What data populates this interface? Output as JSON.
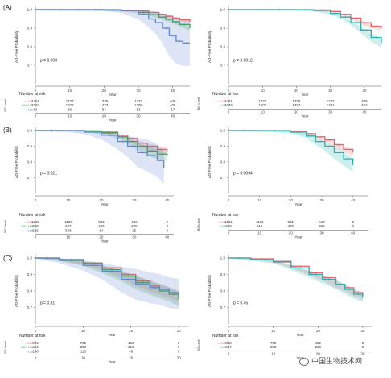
{
  "panel_letters": [
    "(A)",
    "(B)",
    "(C)"
  ],
  "watermark": "中国生物技术网",
  "colors": {
    "red": "#e8636b",
    "green": "#3aa24a",
    "blue": "#5f86d6",
    "teal": "#26b2b2"
  },
  "chart_data": [
    {
      "type": "line",
      "id": "A-left",
      "letter": "(A)",
      "xlabel": "Year",
      "ylabel": "AD-Free Probability",
      "pvalue": "p = 0.003",
      "xlim": [
        0,
        45
      ],
      "ylim": [
        0.6,
        1.0
      ],
      "xticks": [
        0,
        10,
        20,
        30,
        40
      ],
      "yticks": [
        0.7,
        0.8,
        0.9,
        1.0
      ],
      "series": [
        {
          "color": "red",
          "x": [
            0,
            5,
            10,
            15,
            20,
            25,
            30,
            33,
            36,
            38,
            40,
            42,
            45
          ],
          "y": [
            1,
            1,
            1,
            1,
            0.999,
            0.997,
            0.993,
            0.985,
            0.975,
            0.965,
            0.955,
            0.945,
            0.935
          ],
          "band": 0.012
        },
        {
          "color": "green",
          "x": [
            0,
            5,
            10,
            15,
            20,
            25,
            30,
            33,
            36,
            38,
            40,
            42,
            45
          ],
          "y": [
            1,
            1,
            1,
            1,
            0.998,
            0.994,
            0.985,
            0.973,
            0.96,
            0.948,
            0.935,
            0.92,
            0.9
          ],
          "band": 0.014
        },
        {
          "color": "blue",
          "x": [
            0,
            10,
            20,
            25,
            30,
            33,
            35,
            37,
            39,
            41,
            43,
            45
          ],
          "y": [
            1,
            1,
            1,
            0.995,
            0.975,
            0.95,
            0.93,
            0.9,
            0.86,
            0.83,
            0.82,
            0.82
          ],
          "band": 0.12
        }
      ],
      "risk": {
        "title": "Number at risk",
        "ylabel": "BG Level",
        "xticks": [
          0,
          10,
          20,
          30,
          40
        ],
        "strata": [
          {
            "label": "<=100",
            "color": "red",
            "values": [
              "1461",
              "1427",
              "1336",
              "1223",
              "408"
            ]
          },
          {
            "label": "100~126",
            "color": "green",
            "values": [
              "1062",
              "1027",
              "1423",
              "1208",
              "405"
            ]
          },
          {
            "label": ">126",
            "color": "blue",
            "values": [
              "84",
              "80",
              "84",
              "63",
              "17"
            ]
          }
        ]
      }
    },
    {
      "type": "line",
      "id": "A-right",
      "letter": "",
      "xlabel": "Year",
      "ylabel": "AD-Free Probability",
      "pvalue": "p = 0.0012",
      "xlim": [
        0,
        45
      ],
      "ylim": [
        0.6,
        1.0
      ],
      "xticks": [
        0,
        10,
        20,
        30,
        40
      ],
      "yticks": [
        0.7,
        0.8,
        0.9,
        1.0
      ],
      "series": [
        {
          "color": "red",
          "x": [
            0,
            10,
            20,
            25,
            30,
            33,
            36,
            39,
            42,
            45
          ],
          "y": [
            1,
            1,
            1,
            0.998,
            0.99,
            0.975,
            0.955,
            0.93,
            0.91,
            0.9
          ],
          "band": 0.015
        },
        {
          "color": "teal",
          "x": [
            0,
            10,
            20,
            25,
            30,
            33,
            36,
            39,
            42,
            45
          ],
          "y": [
            1,
            1,
            0.999,
            0.995,
            0.98,
            0.96,
            0.93,
            0.89,
            0.85,
            0.82
          ],
          "band": 0.02
        }
      ],
      "risk": {
        "title": "Number at risk",
        "ylabel": "BG Level",
        "xticks": [
          0,
          10,
          20,
          30,
          40
        ],
        "strata": [
          {
            "label": "<=100",
            "color": "red",
            "values": [
              "1461",
              "1427",
              "1338",
              "1222",
              "409"
            ]
          },
          {
            "label": ">100",
            "color": "teal",
            "values": [
              "1646",
              "1607",
              "1487",
              "1281",
              "422"
            ]
          }
        ]
      }
    },
    {
      "type": "line",
      "id": "B-left",
      "letter": "(B)",
      "xlabel": "Year",
      "ylabel": "AD-Free Probability",
      "pvalue": "p = 0.021",
      "xlim": [
        0,
        42
      ],
      "ylim": [
        0.6,
        1.0
      ],
      "xticks": [
        0,
        10,
        20,
        30,
        40
      ],
      "yticks": [
        0.7,
        0.8,
        0.9,
        1.0
      ],
      "series": [
        {
          "color": "red",
          "x": [
            0,
            10,
            15,
            20,
            25,
            28,
            31,
            34,
            37,
            40
          ],
          "y": [
            1,
            1,
            0.998,
            0.99,
            0.97,
            0.95,
            0.92,
            0.9,
            0.88,
            0.87
          ],
          "band": 0.025
        },
        {
          "color": "green",
          "x": [
            0,
            10,
            15,
            20,
            25,
            28,
            31,
            34,
            37,
            40
          ],
          "y": [
            1,
            1,
            0.997,
            0.985,
            0.96,
            0.93,
            0.9,
            0.87,
            0.85,
            0.84
          ],
          "band": 0.03
        },
        {
          "color": "blue",
          "x": [
            0,
            10,
            15,
            20,
            25,
            28,
            31,
            34,
            37,
            39
          ],
          "y": [
            1,
            0.998,
            0.99,
            0.97,
            0.93,
            0.9,
            0.86,
            0.84,
            0.81,
            0.76
          ],
          "band": 0.1
        }
      ],
      "risk": {
        "title": "Number at risk",
        "ylabel": "BG Level",
        "xticks": [
          0,
          10,
          20,
          30,
          40
        ],
        "strata": [
          {
            "label": "<=100",
            "color": "red",
            "values": [
              "1203",
              "1136",
              "881",
              "449",
              "0"
            ]
          },
          {
            "label": "100~126",
            "color": "green",
            "values": [
              "543",
              "507",
              "409",
              "209",
              "0"
            ]
          },
          {
            "label": ">126",
            "color": "blue",
            "values": [
              "525",
              "508",
              "64",
              "25",
              "0"
            ]
          }
        ]
      }
    },
    {
      "type": "line",
      "id": "B-right",
      "letter": "",
      "xlabel": "Year",
      "ylabel": "AD-Free Probability",
      "pvalue": "p = 0.0094",
      "xlim": [
        0,
        45
      ],
      "ylim": [
        0.6,
        1.0
      ],
      "xticks": [
        0,
        10,
        20,
        30,
        40
      ],
      "yticks": [
        0.7,
        0.8,
        0.9,
        1.0
      ],
      "series": [
        {
          "color": "red",
          "x": [
            0,
            10,
            20,
            25,
            28,
            31,
            34,
            37,
            40
          ],
          "y": [
            1,
            1,
            0.995,
            0.98,
            0.96,
            0.94,
            0.91,
            0.88,
            0.86
          ],
          "band": 0.02
        },
        {
          "color": "teal",
          "x": [
            0,
            10,
            20,
            25,
            28,
            31,
            34,
            37,
            40
          ],
          "y": [
            1,
            0.999,
            0.99,
            0.965,
            0.93,
            0.9,
            0.86,
            0.82,
            0.78
          ],
          "band": 0.04
        }
      ],
      "risk": {
        "title": "Number at risk",
        "ylabel": "BG Level",
        "xticks": [
          0,
          10,
          20,
          30,
          40
        ],
        "strata": [
          {
            "label": "<=100",
            "color": "red",
            "values": [
              "1201",
              "1136",
              "881",
              "449",
              "0"
            ]
          },
          {
            "label": ">100",
            "color": "teal",
            "values": [
              "690",
              "615",
              "470",
              "235",
              "0"
            ]
          }
        ]
      }
    },
    {
      "type": "line",
      "id": "C-left",
      "letter": "(C)",
      "xlabel": "Year",
      "ylabel": "AD-Free Probability",
      "pvalue": "p = 0.31",
      "xlim": [
        0,
        32
      ],
      "ylim": [
        0.6,
        1.0
      ],
      "xticks": [
        0,
        10,
        20,
        30
      ],
      "yticks": [
        0.7,
        0.8,
        0.9,
        1.0
      ],
      "series": [
        {
          "color": "red",
          "x": [
            0,
            5,
            10,
            14,
            18,
            21,
            24,
            26,
            28,
            30
          ],
          "y": [
            1,
            0.99,
            0.97,
            0.94,
            0.9,
            0.86,
            0.83,
            0.81,
            0.79,
            0.77
          ],
          "band": 0.03
        },
        {
          "color": "green",
          "x": [
            0,
            5,
            10,
            14,
            18,
            21,
            24,
            26,
            28,
            30
          ],
          "y": [
            1,
            0.99,
            0.965,
            0.93,
            0.89,
            0.85,
            0.82,
            0.8,
            0.78,
            0.75
          ],
          "band": 0.04
        },
        {
          "color": "blue",
          "x": [
            0,
            5,
            10,
            14,
            18,
            21,
            24,
            26,
            28,
            30
          ],
          "y": [
            1,
            0.985,
            0.955,
            0.92,
            0.87,
            0.84,
            0.82,
            0.81,
            0.79,
            0.78
          ],
          "band": 0.09
        }
      ],
      "risk": {
        "title": "Number at risk",
        "ylabel": "BG Level",
        "xticks": [
          0,
          10,
          20,
          30
        ],
        "strata": [
          {
            "label": "<=100",
            "color": "red",
            "values": [
              "896",
              "795",
              "462",
              "0"
            ]
          },
          {
            "label": "100~126",
            "color": "green",
            "values": [
              "456",
              "393",
              "219",
              "0"
            ]
          },
          {
            "label": ">126",
            "color": "blue",
            "values": [
              "146",
              "113",
              "49",
              "0"
            ]
          }
        ]
      }
    },
    {
      "type": "line",
      "id": "C-right",
      "letter": "",
      "xlabel": "Year",
      "ylabel": "AD-Free Probability",
      "pvalue": "p = 0.45",
      "xlim": [
        0,
        32
      ],
      "ylim": [
        0.6,
        1.0
      ],
      "xticks": [
        0,
        10,
        20,
        30
      ],
      "yticks": [
        0.7,
        0.8,
        0.9,
        1.0
      ],
      "series": [
        {
          "color": "red",
          "x": [
            0,
            5,
            10,
            14,
            18,
            21,
            24,
            26,
            28,
            30
          ],
          "y": [
            1,
            0.995,
            0.98,
            0.95,
            0.91,
            0.88,
            0.84,
            0.82,
            0.79,
            0.77
          ],
          "band": 0.02
        },
        {
          "color": "teal",
          "x": [
            0,
            5,
            10,
            14,
            18,
            21,
            24,
            26,
            28,
            30
          ],
          "y": [
            1,
            0.99,
            0.975,
            0.94,
            0.9,
            0.87,
            0.84,
            0.81,
            0.78,
            0.76
          ],
          "band": 0.025
        }
      ],
      "risk": {
        "title": "Number at risk",
        "ylabel": "BG Level",
        "xticks": [
          0,
          10,
          20,
          30
        ],
        "strata": [
          {
            "label": "<=100",
            "color": "red",
            "values": [
              "898",
              "798",
              "462",
              "0"
            ]
          },
          {
            "label": ">100",
            "color": "teal",
            "values": [
              "607",
              "503",
              "268",
              "0"
            ]
          }
        ]
      }
    }
  ]
}
